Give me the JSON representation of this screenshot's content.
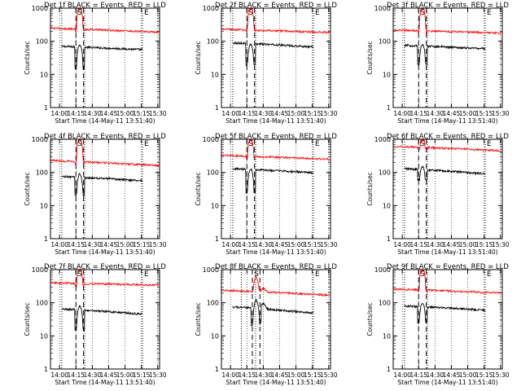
{
  "figure": {
    "xlabel": "Start Time (14-May-11 13:51:40)",
    "ylabel": "Counts/sec",
    "xtick_labels": [
      "14:00",
      "14:15",
      "14:30",
      "14:45",
      "15:00",
      "15:15",
      "15:30"
    ],
    "ytick_labels": [
      "1",
      "10",
      "100",
      "1000"
    ],
    "marker_S": "S",
    "marker_E": "E",
    "colors": {
      "events": "#000000",
      "lld": "#ff0000",
      "axes": "#000000"
    }
  },
  "chart_data": [
    {
      "type": "line",
      "title": "Det 1f BLACK = Events, RED = LLD",
      "xlim": [
        "13:51:40",
        "15:31:40"
      ],
      "ylim": [
        1,
        1000
      ],
      "yscale": "log",
      "grid": "dotted vertical",
      "dotted_lines": [
        "14:02",
        "14:23",
        "15:16"
      ],
      "dashed_lines": [
        "14:15",
        "14:22"
      ],
      "series": [
        {
          "name": "Events",
          "start": "14:02",
          "end": "15:16",
          "level": 70,
          "decline": 0.8,
          "dip": 15,
          "peak": 80,
          "bumps": []
        },
        {
          "name": "LLD",
          "start": "13:51",
          "end": "15:31",
          "level": 250,
          "decline": 0.75,
          "dip": 200,
          "peak": 1200,
          "bumps": []
        }
      ]
    },
    {
      "type": "line",
      "title": "Det 2f BLACK = Events, RED = LLD",
      "xlim": [
        "13:51:40",
        "15:31:40"
      ],
      "ylim": [
        1,
        1000
      ],
      "yscale": "log",
      "grid": "dotted vertical",
      "dotted_lines": [
        "14:02",
        "14:23",
        "15:16"
      ],
      "dashed_lines": [
        "14:15",
        "14:22"
      ],
      "series": [
        {
          "name": "Events",
          "start": "14:02",
          "end": "15:16",
          "level": 90,
          "decline": 0.75,
          "dip": 20,
          "peak": 80,
          "bumps": []
        },
        {
          "name": "LLD",
          "start": "13:51",
          "end": "15:31",
          "level": 230,
          "decline": 0.8,
          "dip": 200,
          "peak": 1200,
          "bumps": []
        }
      ]
    },
    {
      "type": "line",
      "title": "Det 3f BLACK = Events, RED = LLD",
      "xlim": [
        "13:51:40",
        "15:31:40"
      ],
      "ylim": [
        1,
        1000
      ],
      "yscale": "log",
      "grid": "dotted vertical",
      "dotted_lines": [
        "14:02",
        "14:23",
        "15:16"
      ],
      "dashed_lines": [
        "14:15",
        "14:22"
      ],
      "series": [
        {
          "name": "Events",
          "start": "14:02",
          "end": "15:16",
          "level": 75,
          "decline": 0.8,
          "dip": 20,
          "peak": 80,
          "bumps": []
        },
        {
          "name": "LLD",
          "start": "13:51",
          "end": "15:31",
          "level": 220,
          "decline": 0.8,
          "dip": 180,
          "peak": 1200,
          "bumps": []
        }
      ]
    },
    {
      "type": "line",
      "title": "Det 4f BLACK = Events, RED = LLD",
      "xlim": [
        "13:51:40",
        "15:31:40"
      ],
      "ylim": [
        1,
        1000
      ],
      "yscale": "log",
      "grid": "dotted vertical",
      "dotted_lines": [
        "14:02",
        "14:23",
        "15:16"
      ],
      "dashed_lines": [
        "14:15",
        "14:22"
      ],
      "series": [
        {
          "name": "Events",
          "start": "14:02",
          "end": "15:16",
          "level": 75,
          "decline": 0.75,
          "dip": 20,
          "peak": 90,
          "bumps": []
        },
        {
          "name": "LLD",
          "start": "13:51",
          "end": "15:31",
          "level": 230,
          "decline": 0.7,
          "dip": 170,
          "peak": 1200,
          "bumps": []
        }
      ]
    },
    {
      "type": "line",
      "title": "Det 5f BLACK = Events, RED = LLD",
      "xlim": [
        "13:51:40",
        "15:31:40"
      ],
      "ylim": [
        1,
        1000
      ],
      "yscale": "log",
      "grid": "dotted vertical",
      "dotted_lines": [
        "14:02",
        "14:23",
        "15:16"
      ],
      "dashed_lines": [
        "14:15",
        "14:22"
      ],
      "series": [
        {
          "name": "Events",
          "start": "14:02",
          "end": "15:16",
          "level": 130,
          "decline": 0.75,
          "dip": 25,
          "peak": 130,
          "bumps": []
        },
        {
          "name": "LLD",
          "start": "13:51",
          "end": "15:31",
          "level": 330,
          "decline": 0.75,
          "dip": 280,
          "peak": 1200,
          "bumps": []
        }
      ]
    },
    {
      "type": "line",
      "title": "Det 6f BLACK = Events, RED = LLD",
      "xlim": [
        "13:51:40",
        "15:31:40"
      ],
      "ylim": [
        1,
        1000
      ],
      "yscale": "log",
      "grid": "dotted vertical",
      "dotted_lines": [
        "14:02",
        "14:23",
        "15:16"
      ],
      "dashed_lines": [
        "14:15",
        "14:22"
      ],
      "series": [
        {
          "name": "Events",
          "start": "14:02",
          "end": "15:16",
          "level": 130,
          "decline": 0.7,
          "dip": 60,
          "peak": 150,
          "bumps": []
        },
        {
          "name": "LLD",
          "start": "13:51",
          "end": "15:31",
          "level": 620,
          "decline": 0.72,
          "dip": 500,
          "peak": 1200,
          "bumps": []
        }
      ]
    },
    {
      "type": "line",
      "title": "Det 7f BLACK = Events, RED = LLD",
      "xlim": [
        "13:51:40",
        "15:31:40"
      ],
      "ylim": [
        1,
        1000
      ],
      "yscale": "log",
      "grid": "dotted vertical",
      "dotted_lines": [
        "14:02",
        "14:23",
        "15:16"
      ],
      "dashed_lines": [
        "14:15",
        "14:22"
      ],
      "series": [
        {
          "name": "Events",
          "start": "14:02",
          "end": "15:16",
          "level": 65,
          "decline": 0.7,
          "dip": 15,
          "peak": 80,
          "bumps": []
        },
        {
          "name": "LLD",
          "start": "13:51",
          "end": "15:31",
          "level": 400,
          "decline": 0.85,
          "dip": 330,
          "peak": 1200,
          "bumps": []
        }
      ]
    },
    {
      "type": "line",
      "title": "Det 8f BLACK = Events, RED = LLD",
      "xlim": [
        "13:51:40",
        "15:31:40"
      ],
      "ylim": [
        1,
        1000
      ],
      "yscale": "log",
      "grid": "dotted vertical",
      "dotted_lines": [
        "14:10",
        "14:23",
        "15:16"
      ],
      "dashed_lines": [
        "14:20",
        "14:27"
      ],
      "series": [
        {
          "name": "Events",
          "start": "14:02",
          "end": "15:16",
          "level": 75,
          "decline": 0.65,
          "dip": 20,
          "peak": 120,
          "bumps": [
            [
              "14:30",
              1.5
            ]
          ]
        },
        {
          "name": "LLD",
          "start": "13:51",
          "end": "15:31",
          "level": 240,
          "decline": 0.7,
          "dip": 220,
          "peak": 600,
          "bumps": [
            [
              "14:30",
              1.3
            ]
          ]
        }
      ]
    },
    {
      "type": "line",
      "title": "Det 9f BLACK = Events, RED = LLD",
      "xlim": [
        "13:51:40",
        "15:31:40"
      ],
      "ylim": [
        1,
        1000
      ],
      "yscale": "log",
      "grid": "dotted vertical",
      "dotted_lines": [
        "14:02",
        "14:23",
        "15:16"
      ],
      "dashed_lines": [
        "14:15",
        "14:22"
      ],
      "series": [
        {
          "name": "Events",
          "start": "14:02",
          "end": "15:16",
          "level": 80,
          "decline": 0.75,
          "dip": 25,
          "peak": 100,
          "bumps": []
        },
        {
          "name": "LLD",
          "start": "13:51",
          "end": "15:31",
          "level": 260,
          "decline": 0.75,
          "dip": 220,
          "peak": 1200,
          "bumps": []
        }
      ]
    }
  ]
}
